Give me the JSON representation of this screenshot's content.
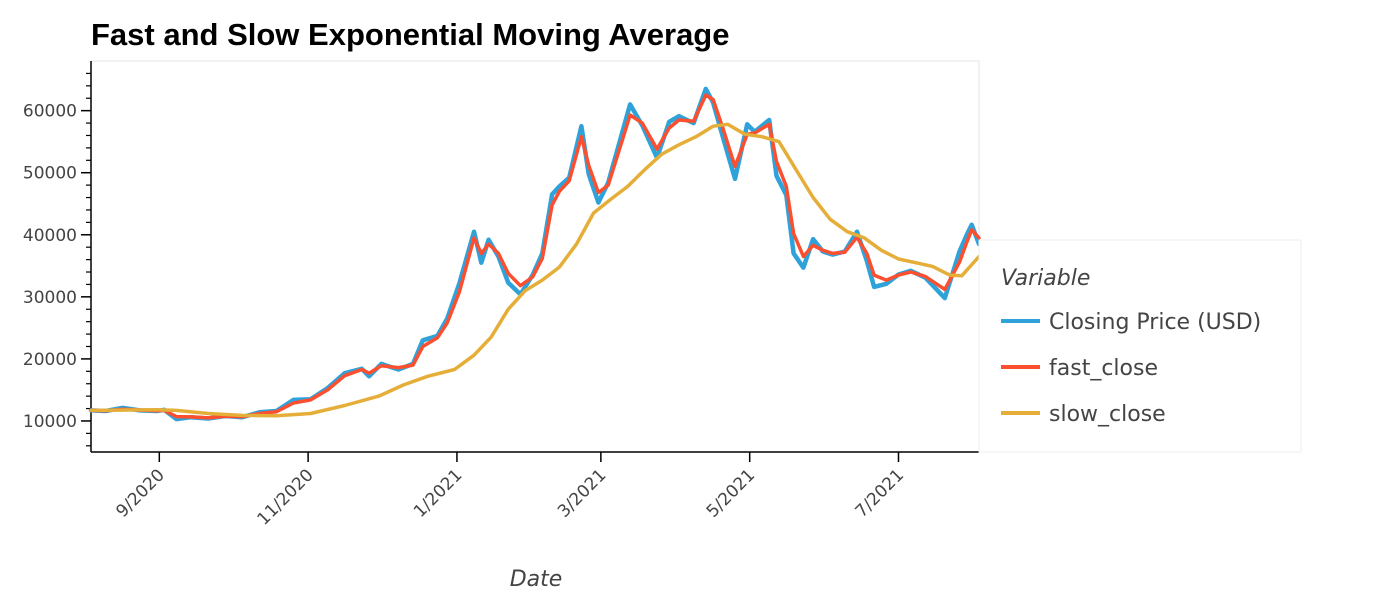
{
  "chart_data": {
    "type": "line",
    "title": "Fast and Slow Exponential Moving Average",
    "xlabel": "Date",
    "ylabel": "",
    "xlim": [
      "2020-08-04",
      "2021-08-03"
    ],
    "ylim": [
      5000,
      68000
    ],
    "yticks": [
      10000,
      20000,
      30000,
      40000,
      50000,
      60000
    ],
    "xticks": [
      {
        "label": "9/2020",
        "date": "2020-09-01"
      },
      {
        "label": "11/2020",
        "date": "2020-11-01"
      },
      {
        "label": "1/2021",
        "date": "2021-01-01"
      },
      {
        "label": "3/2021",
        "date": "2021-03-01"
      },
      {
        "label": "5/2021",
        "date": "2021-05-01"
      },
      {
        "label": "7/2021",
        "date": "2021-07-01"
      }
    ],
    "legend": {
      "title": "Variable",
      "position": "right"
    },
    "series": [
      {
        "name": "Closing Price (USD)",
        "color": "#30a2da",
        "points": [
          [
            "2020-08-04",
            11700
          ],
          [
            "2020-08-10",
            11600
          ],
          [
            "2020-08-17",
            12100
          ],
          [
            "2020-08-24",
            11700
          ],
          [
            "2020-08-31",
            11600
          ],
          [
            "2020-09-03",
            11800
          ],
          [
            "2020-09-08",
            10300
          ],
          [
            "2020-09-14",
            10600
          ],
          [
            "2020-09-21",
            10400
          ],
          [
            "2020-09-28",
            10800
          ],
          [
            "2020-10-05",
            10600
          ],
          [
            "2020-10-12",
            11400
          ],
          [
            "2020-10-19",
            11600
          ],
          [
            "2020-10-26",
            13400
          ],
          [
            "2020-11-02",
            13500
          ],
          [
            "2020-11-09",
            15300
          ],
          [
            "2020-11-16",
            17700
          ],
          [
            "2020-11-23",
            18400
          ],
          [
            "2020-11-26",
            17200
          ],
          [
            "2020-12-01",
            19200
          ],
          [
            "2020-12-08",
            18300
          ],
          [
            "2020-12-14",
            19200
          ],
          [
            "2020-12-18",
            23000
          ],
          [
            "2020-12-24",
            23700
          ],
          [
            "2020-12-28",
            26500
          ],
          [
            "2021-01-02",
            32200
          ],
          [
            "2021-01-08",
            40500
          ],
          [
            "2021-01-11",
            35500
          ],
          [
            "2021-01-14",
            39200
          ],
          [
            "2021-01-18",
            36500
          ],
          [
            "2021-01-22",
            32300
          ],
          [
            "2021-01-27",
            30400
          ],
          [
            "2021-02-01",
            33500
          ],
          [
            "2021-02-05",
            37000
          ],
          [
            "2021-02-09",
            46500
          ],
          [
            "2021-02-12",
            47800
          ],
          [
            "2021-02-16",
            49200
          ],
          [
            "2021-02-21",
            57500
          ],
          [
            "2021-02-24",
            49800
          ],
          [
            "2021-02-28",
            45200
          ],
          [
            "2021-03-04",
            48400
          ],
          [
            "2021-03-10",
            56800
          ],
          [
            "2021-03-13",
            61000
          ],
          [
            "2021-03-18",
            57600
          ],
          [
            "2021-03-24",
            52400
          ],
          [
            "2021-03-29",
            58200
          ],
          [
            "2021-04-02",
            59100
          ],
          [
            "2021-04-08",
            58000
          ],
          [
            "2021-04-13",
            63500
          ],
          [
            "2021-04-16",
            61300
          ],
          [
            "2021-04-20",
            55800
          ],
          [
            "2021-04-25",
            49000
          ],
          [
            "2021-04-30",
            57800
          ],
          [
            "2021-05-03",
            56600
          ],
          [
            "2021-05-09",
            58500
          ],
          [
            "2021-05-12",
            49500
          ],
          [
            "2021-05-16",
            46400
          ],
          [
            "2021-05-19",
            37000
          ],
          [
            "2021-05-23",
            34700
          ],
          [
            "2021-05-27",
            39300
          ],
          [
            "2021-05-31",
            37300
          ],
          [
            "2021-06-04",
            36800
          ],
          [
            "2021-06-09",
            37300
          ],
          [
            "2021-06-14",
            40500
          ],
          [
            "2021-06-18",
            35800
          ],
          [
            "2021-06-21",
            31600
          ],
          [
            "2021-06-26",
            32100
          ],
          [
            "2021-07-01",
            33600
          ],
          [
            "2021-07-06",
            34200
          ],
          [
            "2021-07-12",
            33100
          ],
          [
            "2021-07-20",
            29800
          ],
          [
            "2021-07-26",
            37300
          ],
          [
            "2021-07-29",
            40000
          ],
          [
            "2021-07-31",
            41600
          ],
          [
            "2021-08-03",
            38500
          ]
        ]
      },
      {
        "name": "fast_close",
        "color": "#fc4f30",
        "points": [
          [
            "2020-08-04",
            11700
          ],
          [
            "2020-08-10",
            11650
          ],
          [
            "2020-08-17",
            11900
          ],
          [
            "2020-08-24",
            11750
          ],
          [
            "2020-08-31",
            11650
          ],
          [
            "2020-09-03",
            11700
          ],
          [
            "2020-09-08",
            10700
          ],
          [
            "2020-09-14",
            10650
          ],
          [
            "2020-09-21",
            10500
          ],
          [
            "2020-09-28",
            10750
          ],
          [
            "2020-10-05",
            10700
          ],
          [
            "2020-10-12",
            11200
          ],
          [
            "2020-10-19",
            11500
          ],
          [
            "2020-10-26",
            12900
          ],
          [
            "2020-11-02",
            13400
          ],
          [
            "2020-11-09",
            15000
          ],
          [
            "2020-11-16",
            17300
          ],
          [
            "2020-11-23",
            18300
          ],
          [
            "2020-11-26",
            17700
          ],
          [
            "2020-12-01",
            18900
          ],
          [
            "2020-12-08",
            18600
          ],
          [
            "2020-12-14",
            19000
          ],
          [
            "2020-12-18",
            22000
          ],
          [
            "2020-12-24",
            23400
          ],
          [
            "2020-12-28",
            25800
          ],
          [
            "2021-01-02",
            30800
          ],
          [
            "2021-01-08",
            39500
          ],
          [
            "2021-01-11",
            37000
          ],
          [
            "2021-01-14",
            38500
          ],
          [
            "2021-01-18",
            37000
          ],
          [
            "2021-01-22",
            33800
          ],
          [
            "2021-01-27",
            31800
          ],
          [
            "2021-02-01",
            33200
          ],
          [
            "2021-02-05",
            36200
          ],
          [
            "2021-02-09",
            44800
          ],
          [
            "2021-02-12",
            47000
          ],
          [
            "2021-02-16",
            48700
          ],
          [
            "2021-02-21",
            55800
          ],
          [
            "2021-02-24",
            51200
          ],
          [
            "2021-02-28",
            46800
          ],
          [
            "2021-03-04",
            48000
          ],
          [
            "2021-03-10",
            55500
          ],
          [
            "2021-03-13",
            59300
          ],
          [
            "2021-03-18",
            58000
          ],
          [
            "2021-03-24",
            53800
          ],
          [
            "2021-03-29",
            57200
          ],
          [
            "2021-04-02",
            58500
          ],
          [
            "2021-04-08",
            58300
          ],
          [
            "2021-04-13",
            62500
          ],
          [
            "2021-04-16",
            61800
          ],
          [
            "2021-04-20",
            57200
          ],
          [
            "2021-04-25",
            51000
          ],
          [
            "2021-04-30",
            56200
          ],
          [
            "2021-05-03",
            56400
          ],
          [
            "2021-05-09",
            57800
          ],
          [
            "2021-05-12",
            51800
          ],
          [
            "2021-05-16",
            47800
          ],
          [
            "2021-05-19",
            40200
          ],
          [
            "2021-05-23",
            36500
          ],
          [
            "2021-05-27",
            38300
          ],
          [
            "2021-05-31",
            37500
          ],
          [
            "2021-06-04",
            37000
          ],
          [
            "2021-06-09",
            37200
          ],
          [
            "2021-06-14",
            39600
          ],
          [
            "2021-06-18",
            37000
          ],
          [
            "2021-06-21",
            33500
          ],
          [
            "2021-06-26",
            32700
          ],
          [
            "2021-07-01",
            33500
          ],
          [
            "2021-07-06",
            34000
          ],
          [
            "2021-07-12",
            33300
          ],
          [
            "2021-07-20",
            31200
          ],
          [
            "2021-07-26",
            35600
          ],
          [
            "2021-07-29",
            38800
          ],
          [
            "2021-07-31",
            40800
          ],
          [
            "2021-08-03",
            39500
          ]
        ]
      },
      {
        "name": "slow_close",
        "color": "#e5ae38",
        "points": [
          [
            "2020-08-04",
            11700
          ],
          [
            "2020-08-17",
            11750
          ],
          [
            "2020-08-31",
            11800
          ],
          [
            "2020-09-08",
            11700
          ],
          [
            "2020-09-21",
            11200
          ],
          [
            "2020-10-05",
            10900
          ],
          [
            "2020-10-19",
            10850
          ],
          [
            "2020-11-02",
            11200
          ],
          [
            "2020-11-16",
            12500
          ],
          [
            "2020-11-30",
            14000
          ],
          [
            "2020-12-10",
            15800
          ],
          [
            "2020-12-20",
            17200
          ],
          [
            "2020-12-31",
            18300
          ],
          [
            "2021-01-08",
            20600
          ],
          [
            "2021-01-15",
            23500
          ],
          [
            "2021-01-22",
            28000
          ],
          [
            "2021-01-29",
            31000
          ],
          [
            "2021-02-05",
            32700
          ],
          [
            "2021-02-12",
            34800
          ],
          [
            "2021-02-19",
            38500
          ],
          [
            "2021-02-26",
            43500
          ],
          [
            "2021-03-05",
            45700
          ],
          [
            "2021-03-12",
            47800
          ],
          [
            "2021-03-19",
            50500
          ],
          [
            "2021-03-26",
            53000
          ],
          [
            "2021-04-02",
            54500
          ],
          [
            "2021-04-09",
            55800
          ],
          [
            "2021-04-16",
            57500
          ],
          [
            "2021-04-22",
            57800
          ],
          [
            "2021-04-29",
            56200
          ],
          [
            "2021-05-06",
            55800
          ],
          [
            "2021-05-13",
            55000
          ],
          [
            "2021-05-20",
            50500
          ],
          [
            "2021-05-27",
            46000
          ],
          [
            "2021-06-03",
            42500
          ],
          [
            "2021-06-10",
            40500
          ],
          [
            "2021-06-17",
            39500
          ],
          [
            "2021-06-24",
            37500
          ],
          [
            "2021-07-01",
            36100
          ],
          [
            "2021-07-08",
            35500
          ],
          [
            "2021-07-15",
            34900
          ],
          [
            "2021-07-22",
            33500
          ],
          [
            "2021-07-27",
            33400
          ],
          [
            "2021-08-03",
            36500
          ]
        ]
      }
    ]
  }
}
